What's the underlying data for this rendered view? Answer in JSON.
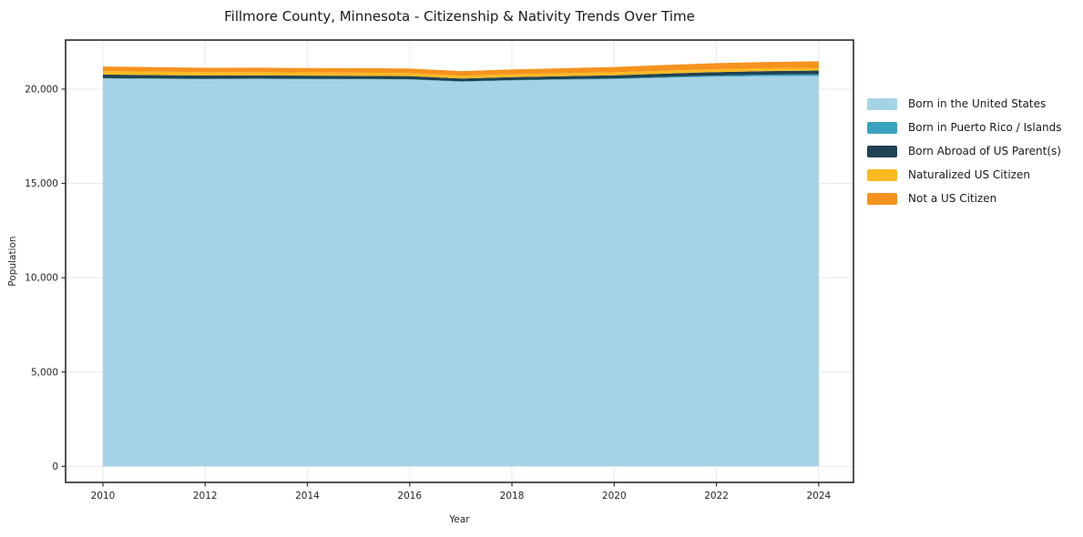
{
  "title": "Fillmore County, Minnesota - Citizenship & Nativity Trends Over Time",
  "chart_data": {
    "type": "area",
    "stacked": true,
    "title": "Fillmore County, Minnesota - Citizenship & Nativity Trends Over Time",
    "xlabel": "Year",
    "ylabel": "Population",
    "x": [
      2010,
      2011,
      2012,
      2013,
      2014,
      2015,
      2016,
      2017,
      2018,
      2019,
      2020,
      2021,
      2022,
      2023,
      2024
    ],
    "series": [
      {
        "name": "Born in the United States",
        "color": "#a5d3e6",
        "values": [
          20560,
          20545,
          20530,
          20540,
          20530,
          20525,
          20510,
          20390,
          20460,
          20500,
          20530,
          20600,
          20660,
          20690,
          20700
        ]
      },
      {
        "name": "Born in Puerto Rico / Islands",
        "color": "#39a2be",
        "values": [
          20,
          18,
          15,
          15,
          12,
          12,
          15,
          18,
          20,
          25,
          30,
          45,
          60,
          75,
          90
        ]
      },
      {
        "name": "Born Abroad of US Parent(s)",
        "color": "#1f4254",
        "values": [
          190,
          182,
          175,
          172,
          168,
          165,
          162,
          152,
          156,
          160,
          168,
          175,
          182,
          188,
          192
        ]
      },
      {
        "name": "Naturalized US Citizen",
        "color": "#fcba22",
        "values": [
          185,
          182,
          178,
          175,
          172,
          168,
          163,
          152,
          156,
          160,
          163,
          160,
          157,
          152,
          148
        ]
      },
      {
        "name": "Not a US Citizen",
        "color": "#f6921e",
        "values": [
          240,
          236,
          232,
          230,
          234,
          238,
          243,
          240,
          250,
          262,
          280,
          300,
          315,
          330,
          342
        ]
      }
    ],
    "xticks": [
      2010,
      2012,
      2014,
      2016,
      2018,
      2020,
      2022,
      2024
    ],
    "xticklabels": [
      "2010",
      "2012",
      "2014",
      "2016",
      "2018",
      "2020",
      "2022",
      "2024"
    ],
    "yticks": [
      0,
      5000,
      10000,
      15000,
      20000
    ],
    "yticklabels": [
      "0",
      "5,000",
      "10,000",
      "15,000",
      "20,000"
    ],
    "xlim": [
      2009.27,
      2024.68
    ],
    "ylim": [
      -850,
      22600
    ],
    "grid": true,
    "grid_color": "#eaeaea",
    "spine_color": "#1a1a1a",
    "legend_position": "right"
  }
}
